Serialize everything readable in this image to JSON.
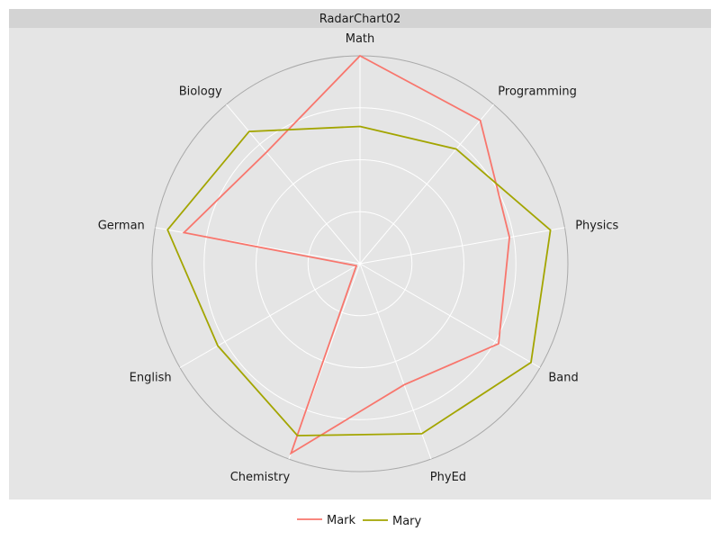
{
  "chart_data": {
    "type": "radar",
    "title": "RadarChart02",
    "categories": [
      "Math",
      "Programming",
      "Physics",
      "Band",
      "PhyEd",
      "Chemistry",
      "English",
      "German",
      "Biology"
    ],
    "rlim": [
      0,
      100
    ],
    "grid_levels": [
      25,
      50,
      75,
      100
    ],
    "series": [
      {
        "name": "Mark",
        "color": "#f8766d",
        "values": [
          100,
          90,
          73,
          77,
          62,
          97,
          2,
          86,
          70
        ]
      },
      {
        "name": "Mary",
        "color": "#a3a500",
        "values": [
          66,
          72,
          93,
          95,
          87,
          88,
          79,
          94,
          83
        ]
      }
    ],
    "legend_position": "bottom",
    "panel_background": "#e5e5e5",
    "strip_background": "#d3d3d3",
    "grid_color": "#ffffff"
  }
}
